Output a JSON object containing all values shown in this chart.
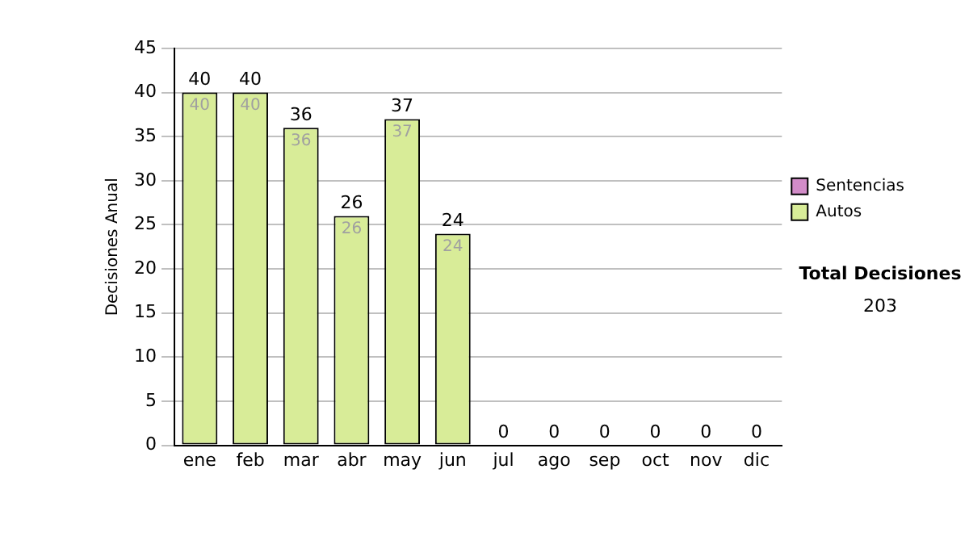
{
  "chart_data": {
    "type": "bar",
    "stacked": true,
    "ylabel": "Decisiones Anual",
    "categories": [
      "ene",
      "feb",
      "mar",
      "abr",
      "may",
      "jun",
      "jul",
      "ago",
      "sep",
      "oct",
      "nov",
      "dic"
    ],
    "series": [
      {
        "name": "Sentencias",
        "color": "#d28cc8",
        "values": [
          0,
          0,
          0,
          0,
          0,
          0,
          0,
          0,
          0,
          0,
          0,
          0
        ]
      },
      {
        "name": "Autos",
        "color": "#d8ec98",
        "values": [
          40,
          40,
          36,
          26,
          37,
          24,
          0,
          0,
          0,
          0,
          0,
          0
        ],
        "value_labels": [
          "40",
          "40",
          "36",
          "26",
          "37",
          "24",
          null,
          null,
          null,
          null,
          null,
          null
        ]
      }
    ],
    "totals": [
      "40",
      "40",
      "36",
      "26",
      "37",
      "24",
      "0",
      "0",
      "0",
      "0",
      "0",
      "0"
    ],
    "ylim": [
      0,
      45
    ],
    "yticks": [
      0,
      5,
      10,
      15,
      20,
      25,
      30,
      35,
      40,
      45
    ],
    "grid": "y",
    "legend": "right",
    "annotations": [
      "Total Decisiones",
      "203"
    ]
  }
}
